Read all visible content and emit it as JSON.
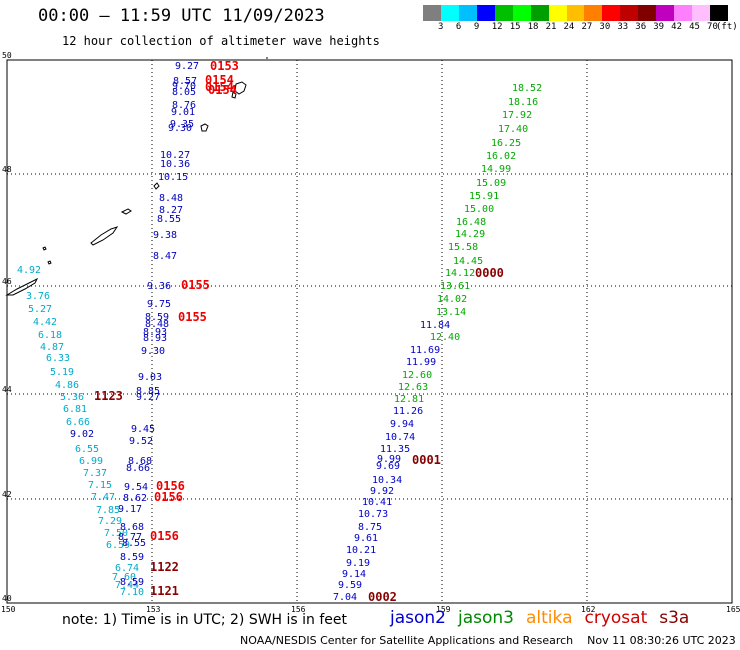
{
  "header": {
    "title": "00:00 – 11:59 UTC 11/09/2023",
    "subtitle": "12 hour collection of altimeter wave heights"
  },
  "colorbar": {
    "colors": [
      "#7f7f7f",
      "#00ffff",
      "#00bfff",
      "#0000ff",
      "#00bf00",
      "#00ff00",
      "#009f00",
      "#ffff00",
      "#ffbf00",
      "#ff8000",
      "#ff0000",
      "#bf0000",
      "#800000",
      "#bf00bf",
      "#ff80ff",
      "#ffbfff",
      "#000000"
    ],
    "ticks": [
      "3",
      "6",
      "9",
      "12",
      "15",
      "18",
      "21",
      "24",
      "27",
      "30",
      "33",
      "36",
      "39",
      "42",
      "45",
      "70"
    ],
    "unit": "(ft)"
  },
  "axes": {
    "x_labels": [
      "150",
      "153",
      "156",
      "159",
      "162",
      "165"
    ],
    "y_labels": [
      "50",
      "48",
      "46",
      "44",
      "42",
      "40"
    ]
  },
  "legend": {
    "items": [
      {
        "name": "jason2",
        "color": "#0000cc"
      },
      {
        "name": "jason3",
        "color": "#008800"
      },
      {
        "name": "altika",
        "color": "#ff8c00"
      },
      {
        "name": "cryosat",
        "color": "#cc0000"
      },
      {
        "name": "s3a",
        "color": "#880000"
      }
    ]
  },
  "note": "note: 1) Time is in UTC; 2) SWH is in feet",
  "credit": "NOAA/NESDIS Center for Satellite Applications and Research    Nov 11 08:30:26 UTC 2023",
  "tracks": {
    "track_a": {
      "color": "#00aacc",
      "values": [
        "4.92",
        "3.76",
        "5.27",
        "4.42",
        "6.18",
        "4.87",
        "6.33",
        "5.19",
        "4.86",
        "5.36",
        "6.81",
        "6.66",
        "6.55",
        "6.99",
        "7.37",
        "7.15",
        "7.47",
        "7.85",
        "7.29",
        "7.50",
        "6.59",
        "6.74",
        "7.60",
        "7.44",
        "7.10"
      ]
    },
    "track_a_dark": {
      "color": "#0000aa",
      "values": [
        "9.02",
        "9.17",
        "8.77"
      ]
    },
    "track_b": {
      "color": "#0000bb",
      "values": [
        "9.27",
        "8.57",
        "9.70",
        "8.05",
        "8.76",
        "9.01",
        "9.35",
        "9.30",
        "10.27",
        "10.36",
        "10.15",
        "8.48",
        "8.27",
        "8.55",
        "9.38",
        "8.47",
        "9.36",
        "9.75",
        "8.59",
        "8.48",
        "8.93",
        "8.93",
        "9.30",
        "9.03",
        "8.85",
        "9.27",
        "9.45",
        "9.52",
        "8.68",
        "8.66",
        "9.54",
        "8.62",
        "8.68",
        "8.55",
        "8.59",
        "8.59"
      ]
    },
    "track_c_blue": {
      "color": "#0000cc",
      "values": [
        "11.84",
        "11.69",
        "11.99",
        "11.26",
        "9.94",
        "10.74",
        "11.35",
        "9.99",
        "9.69",
        "10.34",
        "9.92",
        "10.41",
        "10.73",
        "8.75",
        "9.61",
        "10.21",
        "9.19",
        "9.14",
        "9.59",
        "7.04"
      ]
    },
    "track_c_green": {
      "color": "#00aa00",
      "values": [
        "18.52",
        "18.16",
        "17.92",
        "17.40",
        "16.25",
        "16.02",
        "14.99",
        "15.09",
        "15.91",
        "15.00",
        "16.48",
        "14.29",
        "15.58",
        "14.45",
        "14.12",
        "13.61",
        "14.02",
        "13.14",
        "12.40",
        "12.60",
        "12.63",
        "12.81"
      ]
    },
    "times": [
      {
        "text": "0153",
        "color": "#ee0000"
      },
      {
        "text": "0154",
        "color": "#ee0000"
      },
      {
        "text": "0154",
        "color": "#ee0000"
      },
      {
        "text": "0154",
        "color": "#ee0000"
      },
      {
        "text": "0155",
        "color": "#ee0000"
      },
      {
        "text": "0155",
        "color": "#ee0000"
      },
      {
        "text": "0156",
        "color": "#ee0000"
      },
      {
        "text": "0156",
        "color": "#ee0000"
      },
      {
        "text": "0156",
        "color": "#ee0000"
      },
      {
        "text": "1123",
        "color": "#880000"
      },
      {
        "text": "1122",
        "color": "#880000"
      },
      {
        "text": "1121",
        "color": "#880000"
      },
      {
        "text": "0000",
        "color": "#880000"
      },
      {
        "text": "0001",
        "color": "#880000"
      },
      {
        "text": "0002",
        "color": "#880000"
      }
    ]
  }
}
